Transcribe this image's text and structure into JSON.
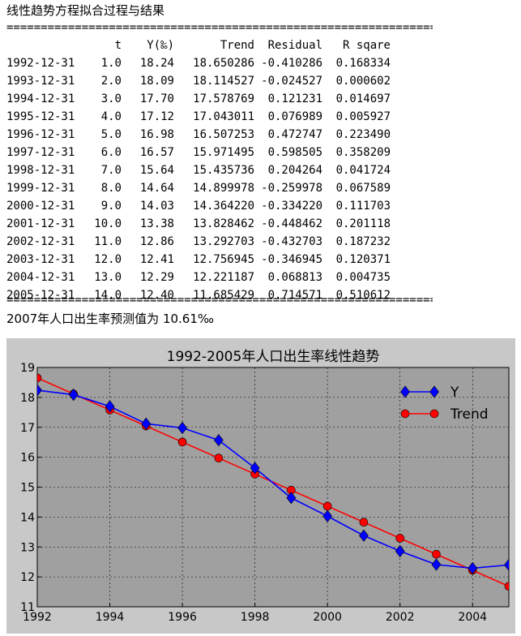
{
  "heading": "线性趋势方程拟合过程与结果",
  "separator": "====================================================================",
  "table": {
    "columns": [
      "t",
      "Y(‰)",
      "Trend",
      "Residual",
      "R sqare"
    ],
    "rows": [
      {
        "date": "1992-12-31",
        "t": "1.0",
        "y": "18.24",
        "trend": "18.650286",
        "residual": "-0.410286",
        "r2": "0.168334"
      },
      {
        "date": "1993-12-31",
        "t": "2.0",
        "y": "18.09",
        "trend": "18.114527",
        "residual": "-0.024527",
        "r2": "0.000602"
      },
      {
        "date": "1994-12-31",
        "t": "3.0",
        "y": "17.70",
        "trend": "17.578769",
        "residual": "0.121231",
        "r2": "0.014697"
      },
      {
        "date": "1995-12-31",
        "t": "4.0",
        "y": "17.12",
        "trend": "17.043011",
        "residual": "0.076989",
        "r2": "0.005927"
      },
      {
        "date": "1996-12-31",
        "t": "5.0",
        "y": "16.98",
        "trend": "16.507253",
        "residual": "0.472747",
        "r2": "0.223490"
      },
      {
        "date": "1997-12-31",
        "t": "6.0",
        "y": "16.57",
        "trend": "15.971495",
        "residual": "0.598505",
        "r2": "0.358209"
      },
      {
        "date": "1998-12-31",
        "t": "7.0",
        "y": "15.64",
        "trend": "15.435736",
        "residual": "0.204264",
        "r2": "0.041724"
      },
      {
        "date": "1999-12-31",
        "t": "8.0",
        "y": "14.64",
        "trend": "14.899978",
        "residual": "-0.259978",
        "r2": "0.067589"
      },
      {
        "date": "2000-12-31",
        "t": "9.0",
        "y": "14.03",
        "trend": "14.364220",
        "residual": "-0.334220",
        "r2": "0.111703"
      },
      {
        "date": "2001-12-31",
        "t": "10.0",
        "y": "13.38",
        "trend": "13.828462",
        "residual": "-0.448462",
        "r2": "0.201118"
      },
      {
        "date": "2002-12-31",
        "t": "11.0",
        "y": "12.86",
        "trend": "13.292703",
        "residual": "-0.432703",
        "r2": "0.187232"
      },
      {
        "date": "2003-12-31",
        "t": "12.0",
        "y": "12.41",
        "trend": "12.756945",
        "residual": "-0.346945",
        "r2": "0.120371"
      },
      {
        "date": "2004-12-31",
        "t": "13.0",
        "y": "12.29",
        "trend": "12.221187",
        "residual": "0.068813",
        "r2": "0.004735"
      },
      {
        "date": "2005-12-31",
        "t": "14.0",
        "y": "12.40",
        "trend": "11.685429",
        "residual": "0.714571",
        "r2": "0.510612"
      }
    ]
  },
  "prediction": "2007年人口出生率预测值为 10.61‰",
  "chart_data": {
    "type": "line",
    "title": "1992-2005年人口出生率线性趋势",
    "xlabel": "",
    "ylabel": "",
    "x": [
      1992,
      1993,
      1994,
      1995,
      1996,
      1997,
      1998,
      1999,
      2000,
      2001,
      2002,
      2003,
      2004,
      2005
    ],
    "xlim": [
      1992,
      2005
    ],
    "ylim": [
      11,
      19
    ],
    "xticks": [
      1992,
      1994,
      1996,
      1998,
      2000,
      2002,
      2004
    ],
    "yticks": [
      11,
      12,
      13,
      14,
      15,
      16,
      17,
      18,
      19
    ],
    "grid": true,
    "legend_position": "top-right",
    "series": [
      {
        "name": "Y",
        "color": "#0000ff",
        "marker": "diamond",
        "values": [
          18.24,
          18.09,
          17.7,
          17.12,
          16.98,
          16.57,
          15.64,
          14.64,
          14.03,
          13.38,
          12.86,
          12.41,
          12.29,
          12.4
        ]
      },
      {
        "name": "Trend",
        "color": "#ff0000",
        "marker": "circle",
        "values": [
          18.650286,
          18.114527,
          17.578769,
          17.043011,
          16.507253,
          15.971495,
          15.435736,
          14.899978,
          14.36422,
          13.828462,
          13.292703,
          12.756945,
          12.221187,
          11.685429
        ]
      }
    ]
  }
}
